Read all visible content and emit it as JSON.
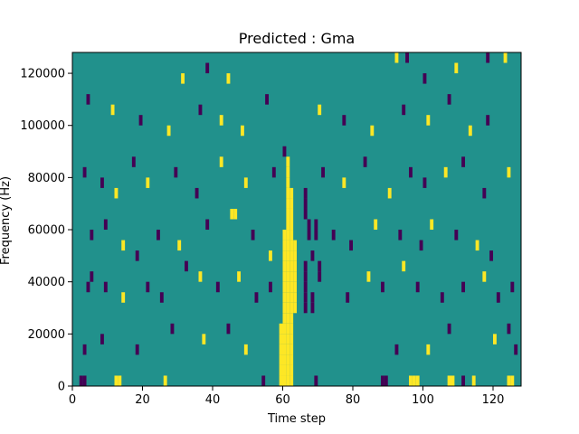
{
  "chart_data": {
    "type": "heatmap",
    "title": "Predicted : Gma",
    "xlabel": "Time step",
    "ylabel": "Frequency (Hz)",
    "xlim": [
      0,
      128
    ],
    "ylim": [
      0,
      128000
    ],
    "x_ticks": [
      {
        "value": 0,
        "label": "0"
      },
      {
        "value": 20,
        "label": "20"
      },
      {
        "value": 40,
        "label": "40"
      },
      {
        "value": 60,
        "label": "60"
      },
      {
        "value": 80,
        "label": "80"
      },
      {
        "value": 100,
        "label": "100"
      },
      {
        "value": 120,
        "label": "120"
      }
    ],
    "y_ticks": [
      {
        "value": 0,
        "label": "0"
      },
      {
        "value": 20000,
        "label": "20000"
      },
      {
        "value": 40000,
        "label": "40000"
      },
      {
        "value": 60000,
        "label": "60000"
      },
      {
        "value": 80000,
        "label": "80000"
      },
      {
        "value": 100000,
        "label": "100000"
      },
      {
        "value": 120000,
        "label": "120000"
      }
    ],
    "grid": false,
    "colormap": "viridis",
    "colors": {
      "background": "#21918c",
      "low": "#440154",
      "high": "#fde725"
    },
    "background_value": 0.5,
    "cell_height": 4000,
    "cells": [
      [
        59,
        0,
        1
      ],
      [
        59,
        4000,
        1
      ],
      [
        59,
        8000,
        1
      ],
      [
        59,
        12000,
        1
      ],
      [
        59,
        16000,
        1
      ],
      [
        59,
        20000,
        1
      ],
      [
        60,
        0,
        1
      ],
      [
        60,
        4000,
        1
      ],
      [
        60,
        8000,
        1
      ],
      [
        60,
        12000,
        1
      ],
      [
        60,
        16000,
        1
      ],
      [
        60,
        20000,
        1
      ],
      [
        60,
        24000,
        1
      ],
      [
        60,
        28000,
        1
      ],
      [
        60,
        32000,
        1
      ],
      [
        60,
        36000,
        1
      ],
      [
        60,
        40000,
        1
      ],
      [
        60,
        44000,
        1
      ],
      [
        60,
        48000,
        1
      ],
      [
        60,
        52000,
        1
      ],
      [
        60,
        56000,
        1
      ],
      [
        61,
        0,
        1
      ],
      [
        61,
        4000,
        1
      ],
      [
        61,
        8000,
        1
      ],
      [
        61,
        12000,
        1
      ],
      [
        61,
        16000,
        1
      ],
      [
        61,
        20000,
        1
      ],
      [
        61,
        24000,
        1
      ],
      [
        61,
        28000,
        1
      ],
      [
        61,
        32000,
        1
      ],
      [
        61,
        36000,
        1
      ],
      [
        61,
        40000,
        1
      ],
      [
        61,
        44000,
        1
      ],
      [
        61,
        48000,
        1
      ],
      [
        61,
        52000,
        1
      ],
      [
        61,
        56000,
        1
      ],
      [
        61,
        60000,
        1
      ],
      [
        61,
        64000,
        1
      ],
      [
        61,
        68000,
        1
      ],
      [
        61,
        72000,
        1
      ],
      [
        61,
        76000,
        1
      ],
      [
        61,
        80000,
        1
      ],
      [
        61,
        84000,
        1
      ],
      [
        62,
        0,
        1
      ],
      [
        62,
        4000,
        1
      ],
      [
        62,
        8000,
        1
      ],
      [
        62,
        12000,
        1
      ],
      [
        62,
        16000,
        1
      ],
      [
        62,
        20000,
        1
      ],
      [
        62,
        24000,
        1
      ],
      [
        62,
        28000,
        1
      ],
      [
        62,
        32000,
        1
      ],
      [
        62,
        36000,
        1
      ],
      [
        62,
        40000,
        1
      ],
      [
        62,
        44000,
        1
      ],
      [
        62,
        48000,
        1
      ],
      [
        62,
        52000,
        1
      ],
      [
        62,
        56000,
        1
      ],
      [
        62,
        60000,
        1
      ],
      [
        62,
        64000,
        1
      ],
      [
        62,
        68000,
        1
      ],
      [
        62,
        72000,
        1
      ],
      [
        63,
        28000,
        1
      ],
      [
        63,
        32000,
        1
      ],
      [
        63,
        36000,
        1
      ],
      [
        63,
        40000,
        1
      ],
      [
        63,
        44000,
        1
      ],
      [
        63,
        48000,
        1
      ],
      [
        63,
        52000,
        1
      ],
      [
        66,
        28000,
        0
      ],
      [
        66,
        32000,
        0
      ],
      [
        66,
        36000,
        0
      ],
      [
        66,
        40000,
        0
      ],
      [
        66,
        44000,
        0
      ],
      [
        66,
        64000,
        0
      ],
      [
        66,
        68000,
        0
      ],
      [
        66,
        72000,
        0
      ],
      [
        67,
        56000,
        0
      ],
      [
        67,
        60000,
        0
      ],
      [
        68,
        28000,
        0
      ],
      [
        68,
        32000,
        0
      ],
      [
        68,
        48000,
        0
      ],
      [
        69,
        56000,
        0
      ],
      [
        69,
        60000,
        0
      ],
      [
        70,
        40000,
        0
      ],
      [
        70,
        44000,
        0
      ],
      [
        2,
        0,
        0
      ],
      [
        3,
        0,
        0
      ],
      [
        12,
        0,
        1
      ],
      [
        13,
        0,
        1
      ],
      [
        26,
        0,
        1
      ],
      [
        54,
        0,
        0
      ],
      [
        69,
        0,
        0
      ],
      [
        88,
        0,
        0
      ],
      [
        89,
        0,
        0
      ],
      [
        96,
        0,
        1
      ],
      [
        97,
        0,
        1
      ],
      [
        98,
        0,
        1
      ],
      [
        107,
        0,
        1
      ],
      [
        108,
        0,
        1
      ],
      [
        111,
        0,
        0
      ],
      [
        114,
        0,
        1
      ],
      [
        124,
        0,
        1
      ],
      [
        125,
        0,
        1
      ],
      [
        3,
        12000,
        0
      ],
      [
        8,
        16000,
        0
      ],
      [
        18,
        12000,
        0
      ],
      [
        28,
        20000,
        0
      ],
      [
        37,
        16000,
        1
      ],
      [
        44,
        20000,
        0
      ],
      [
        49,
        12000,
        1
      ],
      [
        92,
        12000,
        0
      ],
      [
        101,
        12000,
        1
      ],
      [
        107,
        20000,
        0
      ],
      [
        120,
        16000,
        1
      ],
      [
        124,
        20000,
        0
      ],
      [
        126,
        12000,
        0
      ],
      [
        4,
        36000,
        0
      ],
      [
        5,
        40000,
        0
      ],
      [
        9,
        36000,
        0
      ],
      [
        14,
        32000,
        1
      ],
      [
        21,
        36000,
        0
      ],
      [
        25,
        32000,
        0
      ],
      [
        32,
        44000,
        0
      ],
      [
        36,
        40000,
        1
      ],
      [
        41,
        36000,
        0
      ],
      [
        47,
        40000,
        1
      ],
      [
        52,
        32000,
        0
      ],
      [
        56,
        36000,
        0
      ],
      [
        78,
        32000,
        0
      ],
      [
        84,
        40000,
        1
      ],
      [
        88,
        36000,
        0
      ],
      [
        94,
        44000,
        1
      ],
      [
        98,
        36000,
        0
      ],
      [
        105,
        32000,
        0
      ],
      [
        111,
        36000,
        0
      ],
      [
        117,
        40000,
        1
      ],
      [
        121,
        32000,
        0
      ],
      [
        125,
        36000,
        0
      ],
      [
        5,
        56000,
        0
      ],
      [
        9,
        60000,
        0
      ],
      [
        14,
        52000,
        1
      ],
      [
        18,
        48000,
        0
      ],
      [
        24,
        56000,
        0
      ],
      [
        30,
        52000,
        1
      ],
      [
        38,
        60000,
        0
      ],
      [
        45,
        64000,
        1
      ],
      [
        46,
        64000,
        1
      ],
      [
        51,
        56000,
        0
      ],
      [
        56,
        48000,
        1
      ],
      [
        74,
        56000,
        0
      ],
      [
        79,
        52000,
        0
      ],
      [
        86,
        60000,
        1
      ],
      [
        93,
        56000,
        0
      ],
      [
        99,
        52000,
        0
      ],
      [
        102,
        60000,
        1
      ],
      [
        109,
        56000,
        0
      ],
      [
        115,
        52000,
        1
      ],
      [
        119,
        48000,
        0
      ],
      [
        3,
        80000,
        0
      ],
      [
        8,
        76000,
        0
      ],
      [
        12,
        72000,
        1
      ],
      [
        17,
        84000,
        0
      ],
      [
        21,
        76000,
        1
      ],
      [
        29,
        80000,
        0
      ],
      [
        35,
        72000,
        0
      ],
      [
        42,
        84000,
        1
      ],
      [
        49,
        76000,
        1
      ],
      [
        57,
        80000,
        0
      ],
      [
        60,
        88000,
        0
      ],
      [
        71,
        80000,
        0
      ],
      [
        77,
        76000,
        1
      ],
      [
        83,
        84000,
        0
      ],
      [
        90,
        72000,
        1
      ],
      [
        96,
        80000,
        0
      ],
      [
        100,
        76000,
        0
      ],
      [
        106,
        80000,
        1
      ],
      [
        111,
        84000,
        0
      ],
      [
        117,
        72000,
        0
      ],
      [
        124,
        80000,
        1
      ],
      [
        4,
        108000,
        0
      ],
      [
        11,
        104000,
        1
      ],
      [
        19,
        100000,
        0
      ],
      [
        27,
        96000,
        1
      ],
      [
        36,
        104000,
        0
      ],
      [
        42,
        100000,
        1
      ],
      [
        48,
        96000,
        1
      ],
      [
        55,
        108000,
        0
      ],
      [
        70,
        104000,
        1
      ],
      [
        77,
        100000,
        0
      ],
      [
        85,
        96000,
        1
      ],
      [
        94,
        104000,
        0
      ],
      [
        101,
        100000,
        1
      ],
      [
        107,
        108000,
        0
      ],
      [
        113,
        96000,
        1
      ],
      [
        118,
        100000,
        0
      ],
      [
        31,
        116000,
        1
      ],
      [
        38,
        120000,
        0
      ],
      [
        44,
        116000,
        1
      ],
      [
        92,
        124000,
        1
      ],
      [
        95,
        124000,
        0
      ],
      [
        100,
        116000,
        0
      ],
      [
        109,
        120000,
        1
      ],
      [
        118,
        124000,
        0
      ],
      [
        123,
        124000,
        1
      ]
    ]
  }
}
